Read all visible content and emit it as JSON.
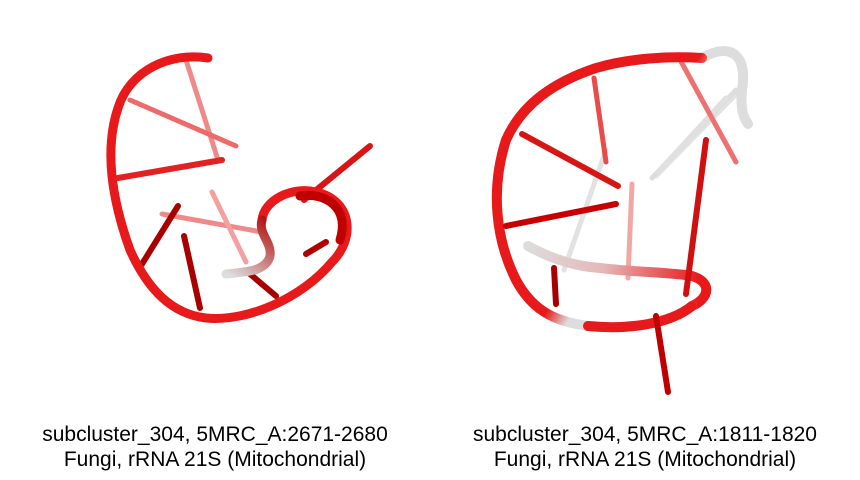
{
  "panels": [
    {
      "caption_line1": "subcluster_304, 5MRC_A:2671-2680",
      "caption_line2": "Fungi, rRNA 21S (Mitochondrial)"
    },
    {
      "caption_line1": "subcluster_304, 5MRC_A:1811-1820",
      "caption_line2": "Fungi, rRNA 21S (Mitochondrial)"
    }
  ],
  "colors": {
    "backbone": "#e8191b",
    "backbone_dark": "#c00000",
    "fade": "#dcdcdc",
    "base_dark": "#a80000",
    "base_light": "#ef7070"
  },
  "icons": [
    "rna-cartoon-structure-left",
    "rna-cartoon-structure-right"
  ]
}
